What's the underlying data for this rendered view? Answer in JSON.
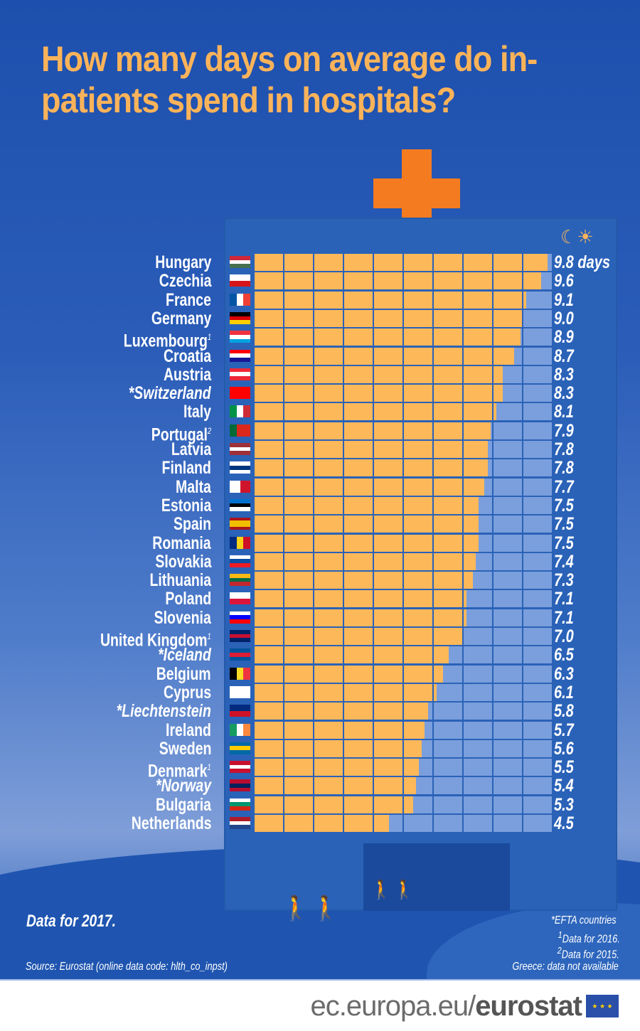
{
  "title": "How many days on average do in-patients spend in hospitals?",
  "icons": {
    "moon": "moon-icon",
    "sun": "sun-icon",
    "cross": "hospital-cross"
  },
  "colors": {
    "title": "#fbb35a",
    "fill": "#fdb85a",
    "empty": "#7b9fdc",
    "building": "#2a62b8",
    "cross": "#f47b20"
  },
  "chart_data": {
    "type": "bar",
    "orientation": "horizontal",
    "unit": "days",
    "xlim": [
      0,
      10
    ],
    "categories": [
      "Hungary",
      "Czechia",
      "France",
      "Germany",
      "Luxembourg",
      "Croatia",
      "Austria",
      "*Switzerland",
      "Italy",
      "Portugal",
      "Latvia",
      "Finland",
      "Malta",
      "Estonia",
      "Spain",
      "Romania",
      "Slovakia",
      "Lithuania",
      "Poland",
      "Slovenia",
      "United Kingdom",
      "*Iceland",
      "Belgium",
      "Cyprus",
      "*Liechtenstein",
      "Ireland",
      "Sweden",
      "Denmark",
      "*Norway",
      "Bulgaria",
      "Netherlands"
    ],
    "footnotes": [
      "",
      "",
      "",
      "",
      "1",
      "",
      "",
      "",
      "",
      "2",
      "",
      "",
      "",
      "",
      "",
      "",
      "",
      "",
      "",
      "",
      "1",
      "",
      "",
      "",
      "",
      "",
      "",
      "1",
      "",
      "",
      ""
    ],
    "values": [
      9.8,
      9.6,
      9.1,
      9.0,
      8.9,
      8.7,
      8.3,
      8.3,
      8.1,
      7.9,
      7.8,
      7.8,
      7.7,
      7.5,
      7.5,
      7.5,
      7.4,
      7.3,
      7.1,
      7.1,
      7.0,
      6.5,
      6.3,
      6.1,
      5.8,
      5.7,
      5.6,
      5.5,
      5.4,
      5.3,
      4.5
    ],
    "value_labels": [
      "9.8 days",
      "9.6",
      "9.1",
      "9.0",
      "8.9",
      "8.7",
      "8.3",
      "8.3",
      "8.1",
      "7.9",
      "7.8",
      "7.8",
      "7.7",
      "7.5",
      "7.5",
      "7.5",
      "7.4",
      "7.3",
      "7.1",
      "7.1",
      "7.0",
      "6.5",
      "6.3",
      "6.1",
      "5.8",
      "5.7",
      "5.6",
      "5.5",
      "5.4",
      "5.3",
      "4.5"
    ],
    "flags": [
      [
        "h",
        "#ce2939",
        "#fff",
        "#477050"
      ],
      [
        "h",
        "#fff",
        "#d7141a"
      ],
      [
        "v",
        "#0055a4",
        "#fff",
        "#ef4135"
      ],
      [
        "h",
        "#000",
        "#dd0000",
        "#ffce00"
      ],
      [
        "h",
        "#ef3340",
        "#fff",
        "#00a3e0"
      ],
      [
        "h",
        "#ff0000",
        "#fff",
        "#171796"
      ],
      [
        "h",
        "#ed2939",
        "#fff",
        "#ed2939"
      ],
      [
        "h",
        "#ff0000"
      ],
      [
        "v",
        "#009246",
        "#fff",
        "#ce2b37"
      ],
      [
        "v",
        "#046a38",
        "#da291c",
        "#da291c"
      ],
      [
        "h",
        "#9e3039",
        "#fff",
        "#9e3039"
      ],
      [
        "h",
        "#fff",
        "#003580",
        "#fff"
      ],
      [
        "v",
        "#fff",
        "#cf142b"
      ],
      [
        "h",
        "#0072ce",
        "#000",
        "#fff"
      ],
      [
        "h",
        "#aa151b",
        "#f1bf00",
        "#f1bf00",
        "#aa151b"
      ],
      [
        "v",
        "#002b7f",
        "#fcd116",
        "#ce1126"
      ],
      [
        "h",
        "#fff",
        "#0b4ea2",
        "#ee1c25"
      ],
      [
        "h",
        "#fdb913",
        "#006a44",
        "#c1272d"
      ],
      [
        "h",
        "#fff",
        "#dc143c"
      ],
      [
        "h",
        "#fff",
        "#0000ff",
        "#ff0000"
      ],
      [
        "h",
        "#012169",
        "#c8102e",
        "#012169"
      ],
      [
        "h",
        "#02529c",
        "#dc1e35",
        "#02529c"
      ],
      [
        "v",
        "#000",
        "#fdda24",
        "#ef3340"
      ],
      [
        "h",
        "#fff"
      ],
      [
        "h",
        "#002b7f",
        "#ce1126"
      ],
      [
        "v",
        "#169b62",
        "#fff",
        "#ff883e"
      ],
      [
        "h",
        "#006aa7",
        "#fecc00",
        "#006aa7"
      ],
      [
        "h",
        "#c8102e",
        "#fff",
        "#c8102e"
      ],
      [
        "h",
        "#ba0c2f",
        "#00205b",
        "#ba0c2f"
      ],
      [
        "h",
        "#fff",
        "#00966e",
        "#d62612"
      ],
      [
        "h",
        "#ae1c28",
        "#fff",
        "#21468b"
      ]
    ]
  },
  "notes": {
    "data_year": "Data for 2017.",
    "source": "Source: Eurostat (online data code: hlth_co_inpst)",
    "efta": "*EFTA countries",
    "note1": "Data for 2016.",
    "note1_mark": "1",
    "note2": "Data for 2015.",
    "note2_mark": "2",
    "greece": "Greece: data not available"
  },
  "footer": {
    "url_prefix": "ec.europa.eu/",
    "url_brand": "eurostat"
  }
}
